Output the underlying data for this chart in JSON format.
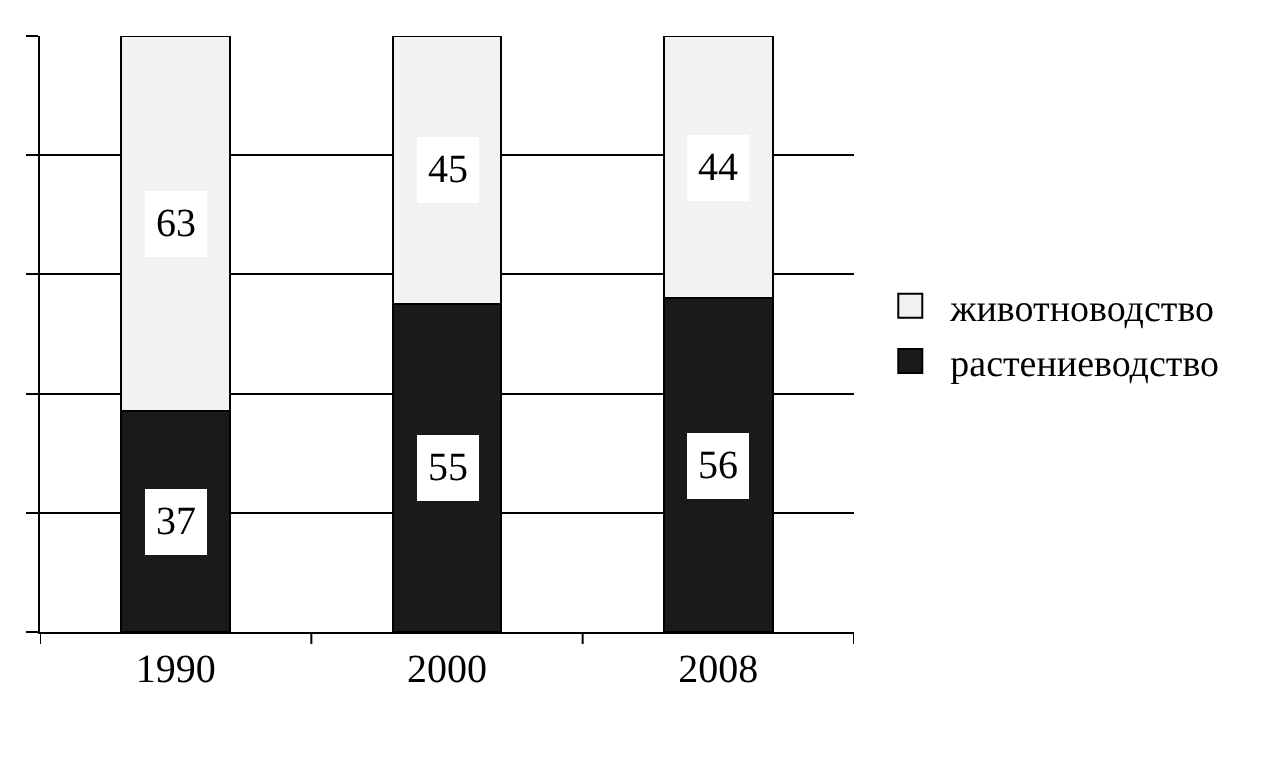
{
  "chart_data": {
    "type": "bar",
    "stacked": true,
    "categories": [
      "1990",
      "2000",
      "2008"
    ],
    "series": [
      {
        "name": "растениеводство",
        "color": "#1a1a1a",
        "values": [
          37,
          55,
          56
        ]
      },
      {
        "name": "животноводство",
        "color": "#f2f2f2",
        "values": [
          63,
          45,
          44
        ]
      }
    ],
    "ylim": [
      0,
      100
    ],
    "yticks": [
      {
        "value": 0,
        "label": null
      },
      {
        "value": 20,
        "label": null
      },
      {
        "value": 40,
        "label": null
      },
      {
        "value": 60,
        "label": null
      },
      {
        "value": 80,
        "label": null
      },
      {
        "value": 100,
        "label": null
      }
    ],
    "grid": "y",
    "legend": "right",
    "data_labels": true
  }
}
